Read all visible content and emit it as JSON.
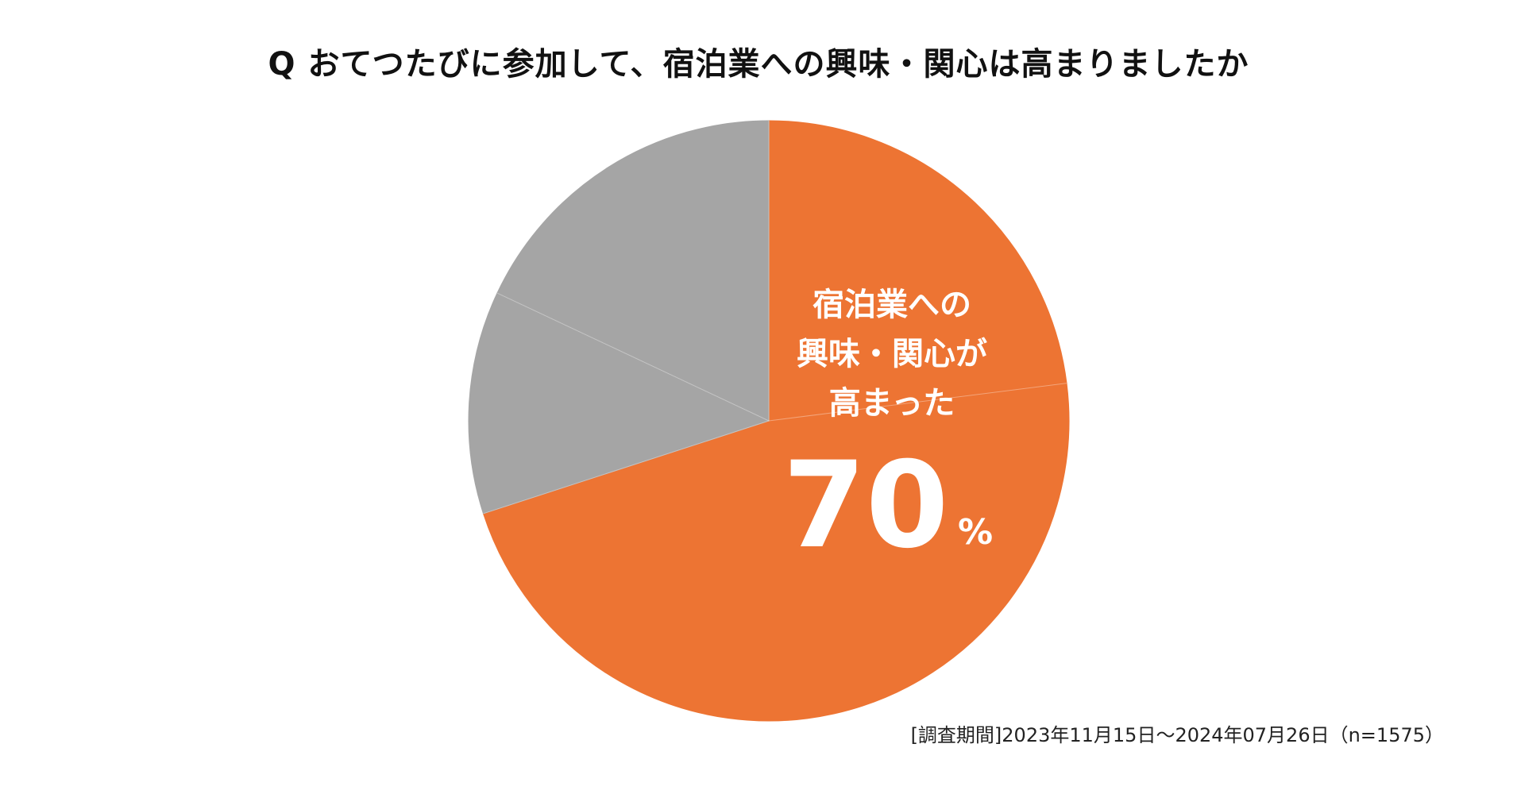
{
  "title": "Q おてつたびに参加して、宿泊業への興味・関心は高まりましたか",
  "chart_data": {
    "type": "pie",
    "title": "Q おてつたびに参加して、宿泊業への興味・関心は高まりましたか",
    "start": "12 o'clock, clockwise",
    "slices": [
      {
        "value": 0.23,
        "color": "#ED7433"
      },
      {
        "value": 0.47,
        "color": "#ED7433"
      },
      {
        "value": 0.12,
        "color": "#A5A5A5"
      },
      {
        "value": 0.18,
        "color": "#A5A5A5"
      }
    ],
    "callout": {
      "lines": [
        "宿泊業への",
        "興味・関心が",
        "高まった"
      ],
      "value": "70",
      "unit": "%"
    }
  },
  "colors": {
    "highlight": "#ED7433",
    "other": "#A5A5A5"
  },
  "footnote": "[調査期間]2023年11月15日～2024年07月26日（n=1575）"
}
